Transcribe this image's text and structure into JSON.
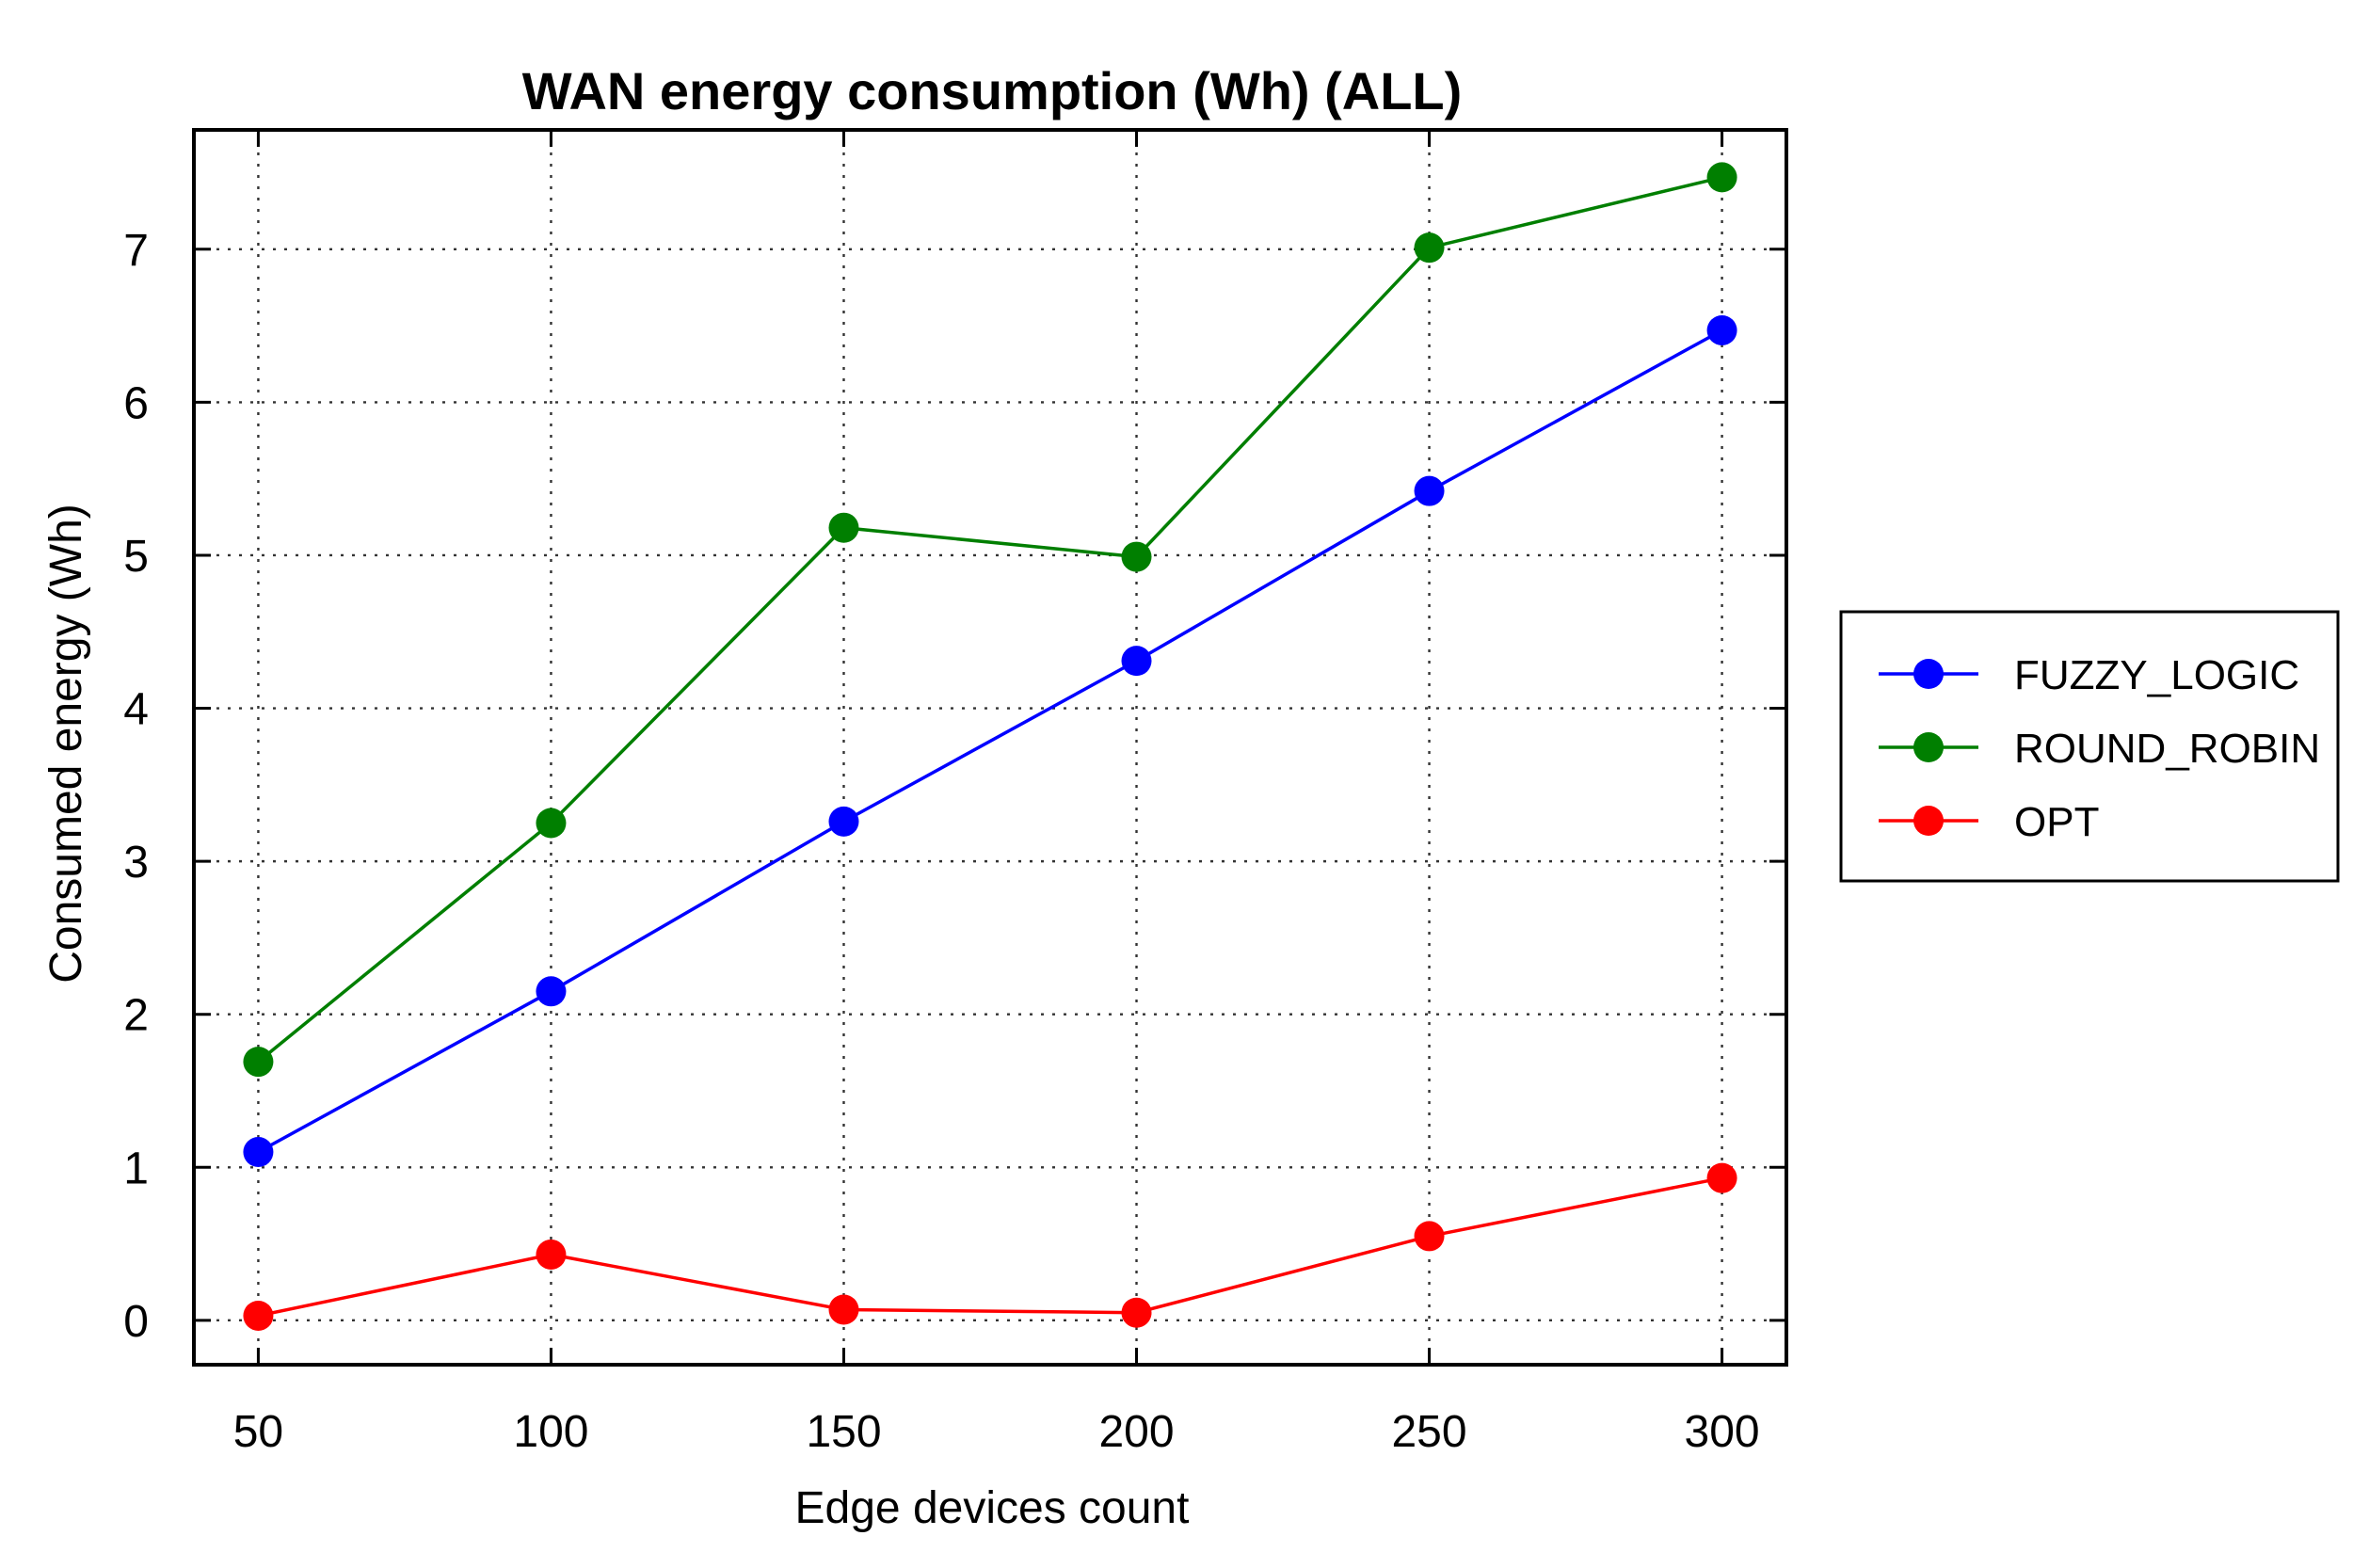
{
  "chart_data": {
    "type": "line",
    "title": "WAN energy consumption (Wh) (ALL)",
    "xlabel": "Edge devices count",
    "ylabel": "Consumed energy (Wh)",
    "x": [
      50,
      100,
      150,
      200,
      250,
      300
    ],
    "x_tick_labels": [
      "50",
      "100",
      "150",
      "200",
      "250",
      "300"
    ],
    "y_ticks": [
      0,
      1,
      2,
      3,
      4,
      5,
      6,
      7
    ],
    "y_tick_labels": [
      "0",
      "1",
      "2",
      "3",
      "4",
      "5",
      "6",
      "7"
    ],
    "xlim": [
      39,
      311
    ],
    "ylim": [
      -0.29,
      7.78
    ],
    "grid": true,
    "legend_position": "outside-right",
    "series": [
      {
        "name": "FUZZY_LOGIC",
        "color": "#0000ff",
        "values": [
          1.1,
          2.15,
          3.26,
          4.31,
          5.42,
          6.47
        ]
      },
      {
        "name": " ROUND_ROBIN",
        "color": "#007f00",
        "values": [
          1.69,
          3.25,
          5.18,
          4.99,
          7.01,
          7.47
        ]
      },
      {
        "name": "OPT",
        "color": "#ff0000",
        "values": [
          0.03,
          0.43,
          0.07,
          0.05,
          0.55,
          0.93
        ]
      }
    ]
  }
}
